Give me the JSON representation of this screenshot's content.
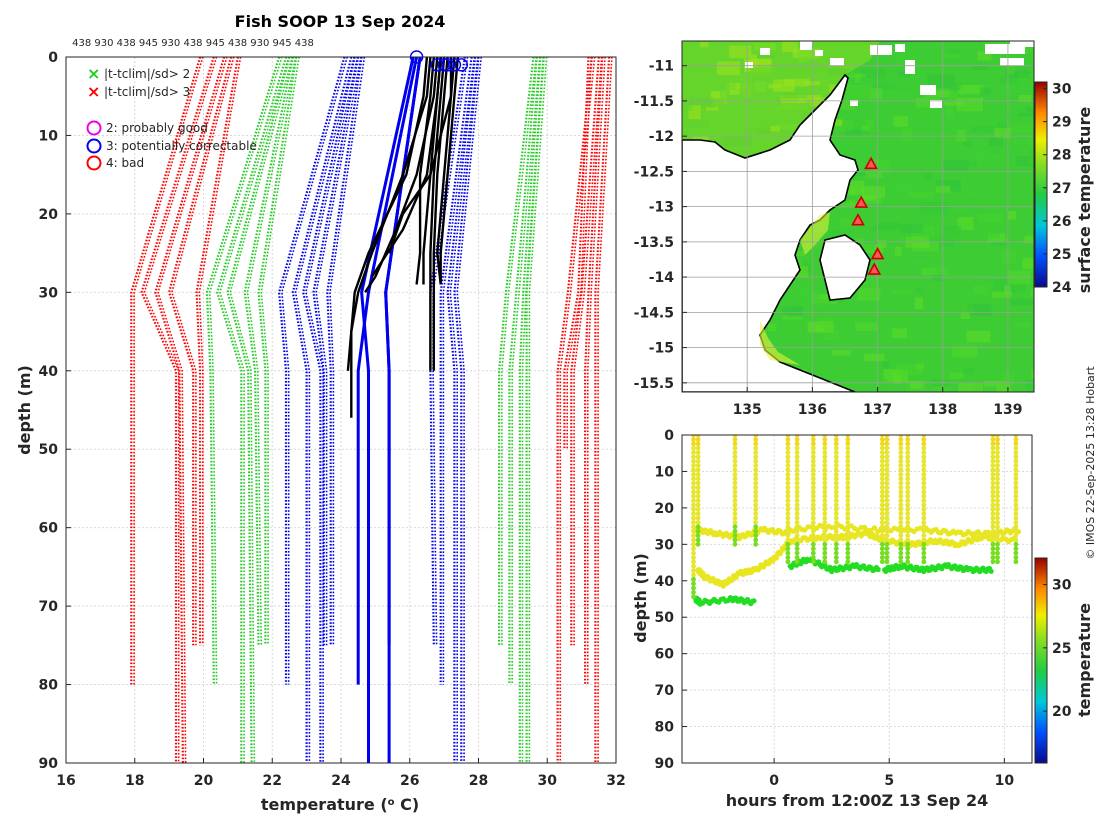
{
  "header": {
    "title": "Fish SOOP 13 Sep 2024",
    "top_ticks": "438 930 438 945 930 438 945 438 930 945 438",
    "credit": "© IMOS 22-Sep-2025 13:28 Hobart"
  },
  "legend": {
    "x2": "|t-tclim|/sd> 2",
    "x3": "|t-tclim|/sd> 3",
    "q2": "2: probably good",
    "q3": "3: potentially correctable",
    "q4": "4: bad"
  },
  "colors": {
    "red": "#ff0000",
    "green": "#22cc22",
    "blue": "#0000ee",
    "black": "#000000",
    "magenta": "#ee00ee",
    "land": "#ffffff",
    "coast": "#000000"
  },
  "chart_data": [
    {
      "type": "line",
      "title": "Fish SOOP 13 Sep 2024",
      "xlabel": "temperature (o C)",
      "ylabel": "depth (m)",
      "xlim": [
        16,
        32
      ],
      "ylim": [
        90,
        0
      ],
      "xticks": [
        16,
        18,
        20,
        22,
        24,
        26,
        28,
        30,
        32
      ],
      "yticks": [
        0,
        10,
        20,
        30,
        40,
        50,
        60,
        70,
        80,
        90
      ],
      "climatology_bounds": [
        {
          "color": "red",
          "depth": [
            0,
            30,
            40,
            80
          ],
          "temp": [
            19.9,
            17.9,
            17.9,
            17.9
          ]
        },
        {
          "color": "red",
          "depth": [
            0,
            30,
            40,
            90
          ],
          "temp": [
            20.3,
            18.2,
            19.2,
            19.2
          ]
        },
        {
          "color": "red",
          "depth": [
            0,
            30,
            40,
            90
          ],
          "temp": [
            20.6,
            18.6,
            19.3,
            19.4
          ]
        },
        {
          "color": "red",
          "depth": [
            0,
            30,
            40,
            75
          ],
          "temp": [
            20.8,
            19.0,
            19.7,
            19.7
          ]
        },
        {
          "color": "red",
          "depth": [
            0,
            30,
            40,
            75
          ],
          "temp": [
            21.0,
            19.8,
            19.9,
            19.9
          ]
        },
        {
          "color": "green",
          "depth": [
            0,
            30,
            40,
            80
          ],
          "temp": [
            22.2,
            20.1,
            20.2,
            20.3
          ]
        },
        {
          "color": "green",
          "depth": [
            0,
            30,
            40,
            90
          ],
          "temp": [
            22.4,
            20.4,
            21.1,
            21.1
          ]
        },
        {
          "color": "green",
          "depth": [
            0,
            30,
            40,
            90
          ],
          "temp": [
            22.5,
            20.7,
            21.3,
            21.4
          ]
        },
        {
          "color": "green",
          "depth": [
            0,
            30,
            40,
            75
          ],
          "temp": [
            22.6,
            21.2,
            21.5,
            21.6
          ]
        },
        {
          "color": "green",
          "depth": [
            0,
            30,
            40,
            75
          ],
          "temp": [
            22.7,
            21.6,
            21.8,
            21.8
          ]
        },
        {
          "color": "blue",
          "depth": [
            0,
            30,
            40,
            80
          ],
          "temp": [
            24.1,
            22.2,
            22.4,
            22.4
          ]
        },
        {
          "color": "blue",
          "depth": [
            0,
            30,
            40,
            90
          ],
          "temp": [
            24.3,
            22.6,
            23.0,
            23.0
          ]
        },
        {
          "color": "blue",
          "depth": [
            0,
            30,
            40,
            90
          ],
          "temp": [
            24.4,
            22.9,
            23.4,
            23.4
          ]
        },
        {
          "color": "blue",
          "depth": [
            0,
            30,
            40,
            75
          ],
          "temp": [
            24.5,
            23.2,
            23.5,
            23.5
          ]
        },
        {
          "color": "blue",
          "depth": [
            0,
            30,
            40,
            75
          ],
          "temp": [
            24.6,
            23.6,
            23.7,
            23.7
          ]
        },
        {
          "color": "blue",
          "depth": [
            0,
            30,
            40,
            75
          ],
          "temp": [
            27.6,
            26.6,
            26.6,
            26.7
          ]
        },
        {
          "color": "blue",
          "depth": [
            0,
            30,
            40,
            80
          ],
          "temp": [
            27.8,
            26.9,
            26.9,
            26.9
          ]
        },
        {
          "color": "blue",
          "depth": [
            0,
            30,
            40,
            90
          ],
          "temp": [
            27.9,
            27.1,
            27.3,
            27.3
          ]
        },
        {
          "color": "blue",
          "depth": [
            0,
            30,
            40,
            90
          ],
          "temp": [
            28.0,
            27.3,
            27.5,
            27.5
          ]
        },
        {
          "color": "green",
          "depth": [
            0,
            30,
            40,
            75
          ],
          "temp": [
            29.6,
            28.8,
            28.6,
            28.6
          ]
        },
        {
          "color": "green",
          "depth": [
            0,
            30,
            40,
            80
          ],
          "temp": [
            29.7,
            29.1,
            28.9,
            28.9
          ]
        },
        {
          "color": "green",
          "depth": [
            0,
            30,
            40,
            90
          ],
          "temp": [
            29.8,
            29.3,
            29.2,
            29.2
          ]
        },
        {
          "color": "green",
          "depth": [
            0,
            30,
            40,
            90
          ],
          "temp": [
            29.9,
            29.4,
            29.4,
            29.4
          ]
        },
        {
          "color": "red",
          "depth": [
            0,
            30,
            40,
            50
          ],
          "temp": [
            31.2,
            30.9,
            30.5,
            30.5
          ]
        },
        {
          "color": "red",
          "depth": [
            0,
            30,
            40,
            90
          ],
          "temp": [
            31.3,
            30.6,
            30.3,
            30.3
          ]
        },
        {
          "color": "red",
          "depth": [
            0,
            30,
            40,
            75
          ],
          "temp": [
            31.5,
            31.0,
            30.7,
            30.7
          ]
        },
        {
          "color": "red",
          "depth": [
            0,
            30,
            40,
            80
          ],
          "temp": [
            31.6,
            31.2,
            31.1,
            31.1
          ]
        },
        {
          "color": "red",
          "depth": [
            0,
            30,
            40,
            90
          ],
          "temp": [
            31.8,
            31.4,
            31.4,
            31.4
          ]
        }
      ],
      "blue_profiles": [
        {
          "depth": [
            0,
            30,
            40,
            90
          ],
          "temp": [
            26.1,
            24.6,
            24.8,
            24.8
          ]
        },
        {
          "depth": [
            0,
            30,
            40,
            80
          ],
          "temp": [
            26.2,
            24.8,
            24.5,
            24.5
          ]
        },
        {
          "depth": [
            0,
            30,
            40,
            75
          ],
          "temp": [
            26.3,
            25.3,
            25.4,
            25.4
          ]
        },
        {
          "depth": [
            0,
            30,
            40,
            90
          ],
          "temp": [
            26.3,
            25.3,
            25.4,
            25.4
          ]
        }
      ],
      "black_profiles": [
        {
          "depth": [
            0,
            5,
            15,
            25,
            30,
            35,
            40,
            46
          ],
          "temp": [
            26.5,
            26.4,
            25.9,
            24.8,
            24.4,
            24.3,
            24.3,
            24.3
          ]
        },
        {
          "depth": [
            0,
            5,
            15,
            25,
            30,
            35,
            40
          ],
          "temp": [
            26.6,
            26.5,
            25.8,
            24.9,
            24.5,
            24.3,
            24.2
          ]
        },
        {
          "depth": [
            0,
            5,
            15,
            22,
            28,
            30
          ],
          "temp": [
            26.8,
            26.7,
            26.2,
            25.6,
            25.0,
            24.7
          ]
        },
        {
          "depth": [
            0,
            5,
            15,
            22,
            28
          ],
          "temp": [
            26.9,
            26.8,
            26.5,
            25.8,
            24.9
          ]
        },
        {
          "depth": [
            0,
            5,
            15,
            25,
            29
          ],
          "temp": [
            26.7,
            26.6,
            26.3,
            26.3,
            26.2
          ]
        },
        {
          "depth": [
            0,
            5,
            15,
            25,
            29
          ],
          "temp": [
            26.9,
            26.8,
            26.6,
            26.4,
            26.4
          ]
        },
        {
          "depth": [
            0,
            5,
            15,
            25,
            30,
            40
          ],
          "temp": [
            27.0,
            26.9,
            26.7,
            26.6,
            26.6,
            26.6
          ]
        },
        {
          "depth": [
            0,
            5,
            15,
            25,
            30,
            40
          ],
          "temp": [
            27.1,
            27.0,
            26.8,
            26.7,
            26.7,
            26.7
          ]
        },
        {
          "depth": [
            0,
            5,
            15,
            25,
            29
          ],
          "temp": [
            27.2,
            27.2,
            27.0,
            26.8,
            26.9
          ]
        },
        {
          "depth": [
            0,
            5,
            15,
            25,
            29
          ],
          "temp": [
            27.4,
            27.3,
            27.1,
            26.9,
            26.9
          ]
        },
        {
          "depth": [
            0,
            5,
            15,
            20,
            25
          ],
          "temp": [
            27.3,
            27.2,
            26.6,
            25.8,
            25.4
          ]
        }
      ],
      "surface_flags": [
        {
          "temp": 26.2,
          "depth": 0,
          "flag": 3
        },
        {
          "temp": 26.8,
          "depth": 1,
          "flag": 3
        },
        {
          "temp": 27.0,
          "depth": 1,
          "flag": 3
        },
        {
          "temp": 27.1,
          "depth": 1,
          "flag": 3
        },
        {
          "temp": 27.3,
          "depth": 1,
          "flag": 3
        },
        {
          "temp": 27.5,
          "depth": 1,
          "flag": 3
        }
      ]
    },
    {
      "type": "heatmap",
      "ylabel": "surface temperature",
      "xticks": [
        135,
        136,
        137,
        138,
        139
      ],
      "yticks": [
        -11,
        -11.5,
        -12,
        -12.5,
        -13,
        -13.5,
        -14,
        -14.5,
        -15,
        -15.5
      ],
      "xlim": [
        134.0,
        139.4
      ],
      "ylim": [
        -15.63,
        -10.65
      ],
      "colorbar": {
        "ticks": [
          24,
          25,
          26,
          27,
          28,
          29,
          30
        ],
        "min": 24,
        "max": 30.2
      },
      "stations": [
        {
          "lon": 136.9,
          "lat": -12.4
        },
        {
          "lon": 136.75,
          "lat": -12.95
        },
        {
          "lon": 136.7,
          "lat": -13.2
        },
        {
          "lon": 137.0,
          "lat": -13.68
        },
        {
          "lon": 136.95,
          "lat": -13.9
        }
      ]
    },
    {
      "type": "scatter",
      "xlabel": "hours from 12:00Z 13 Sep 24",
      "ylabel": "depth (m)",
      "xlim": [
        -4.0,
        11.2
      ],
      "ylim": [
        90,
        0
      ],
      "xticks": [
        0,
        5,
        10
      ],
      "yticks": [
        0,
        10,
        20,
        30,
        40,
        50,
        60,
        70,
        80,
        90
      ],
      "colorbar": {
        "label": "temperature",
        "ticks": [
          20,
          25,
          30
        ],
        "min": 15.9,
        "max": 32.1
      },
      "series": [
        {
          "name": "bottom-green",
          "segments": [
            {
              "x": [
                -3.4,
                -3.2,
                -1.8,
                -0.8
              ],
              "y": [
                45,
                46,
                45,
                46
              ]
            },
            {
              "x": [
                0.7,
                1.5,
                2.5,
                3.5,
                4.6
              ],
              "y": [
                36,
                34,
                37,
                36,
                37
              ]
            },
            {
              "x": [
                4.8,
                5.5,
                6.5,
                7.5,
                8.5,
                9.5
              ],
              "y": [
                37,
                36,
                37,
                36,
                37,
                37
              ]
            }
          ]
        },
        {
          "name": "mid-yellow",
          "segments": [
            {
              "x": [
                -3.3,
                -3.0,
                -2.2,
                -1.5,
                -0.8,
                0.0,
                0.7
              ],
              "y": [
                37,
                39,
                41,
                38,
                37,
                34,
                29
              ]
            },
            {
              "x": [
                -3.4,
                -2.5,
                -1.5,
                -0.5,
                0.7
              ],
              "y": [
                26,
                27,
                28,
                26,
                27
              ]
            },
            {
              "x": [
                0.7,
                2.0,
                3.0,
                4.0,
                4.8,
                6.0,
                7.0,
                8.0,
                9.0,
                10.5
              ],
              "y": [
                29,
                28,
                28,
                27,
                29,
                30,
                29,
                30,
                28,
                29
              ]
            },
            {
              "x": [
                0.7,
                2.5,
                4.5,
                6.5,
                8.0,
                9.5,
                10.7
              ],
              "y": [
                26,
                25,
                26,
                26,
                27,
                27,
                26
              ]
            }
          ]
        }
      ],
      "casts": [
        -3.5,
        -3.3,
        -1.7,
        -0.8,
        0.6,
        1.0,
        1.7,
        2.2,
        2.7,
        3.2,
        4.7,
        4.9,
        5.5,
        5.8,
        6.5,
        9.5,
        9.7,
        10.5
      ]
    }
  ]
}
